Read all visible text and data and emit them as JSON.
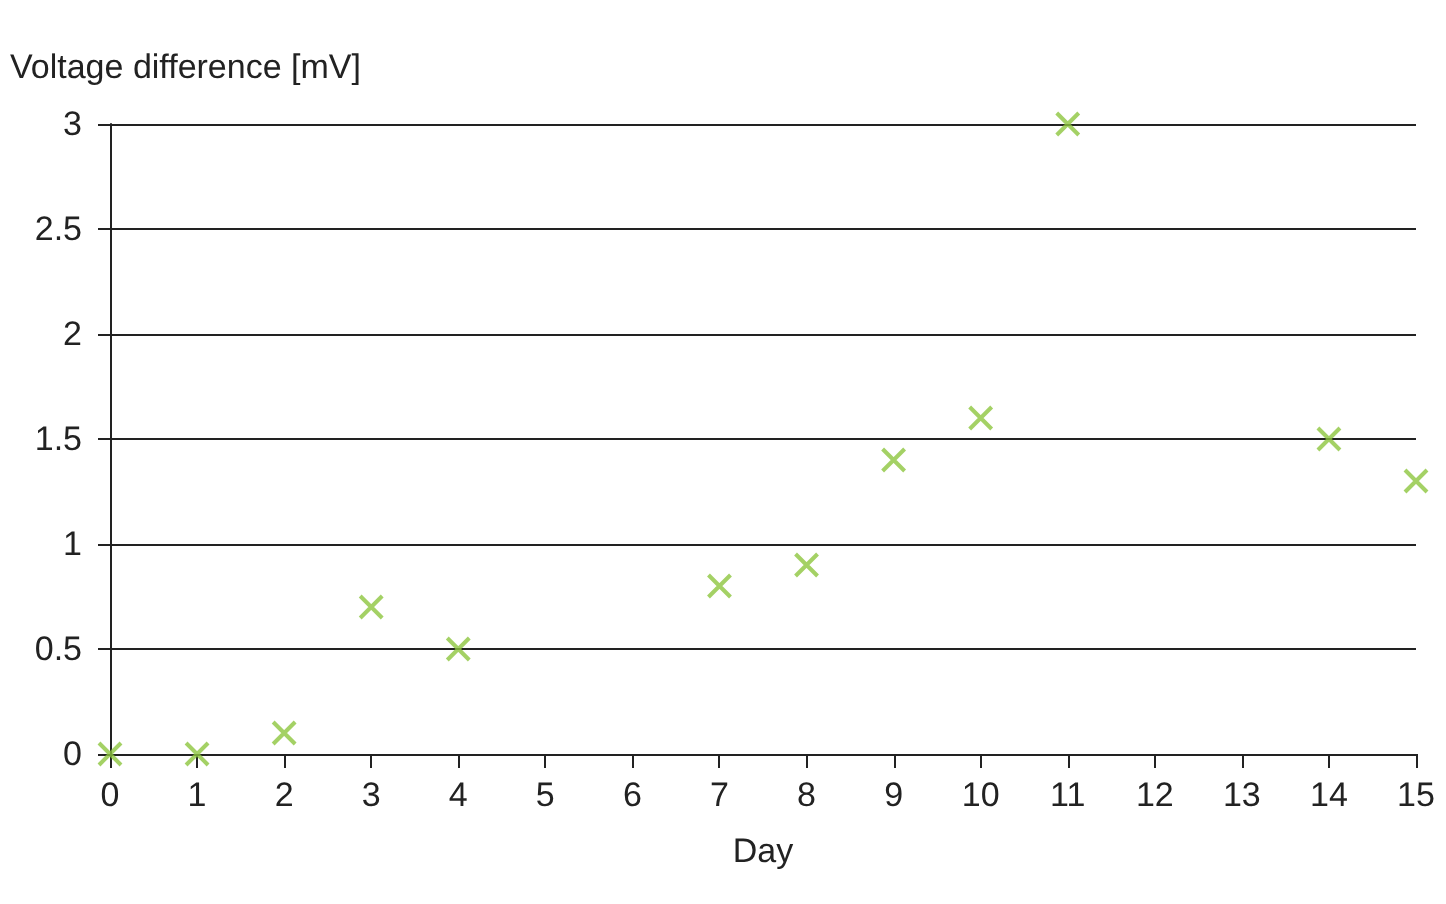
{
  "chart_data": {
    "type": "scatter",
    "xlabel": "Day",
    "ylabel": "Voltage difference [mV]",
    "x": [
      0,
      1,
      2,
      3,
      4,
      7,
      8,
      9,
      10,
      11,
      14,
      15
    ],
    "values": [
      0,
      0,
      0.1,
      0.7,
      0.5,
      0.8,
      0.9,
      1.4,
      1.6,
      3,
      1.5,
      1.3
    ],
    "color": "#8dc63f",
    "marker": "cross",
    "xlim": [
      0,
      15
    ],
    "xticks": [
      0,
      1,
      2,
      3,
      4,
      5,
      6,
      7,
      8,
      9,
      10,
      11,
      12,
      13,
      14,
      15
    ],
    "ylim": [
      0,
      3
    ],
    "yticks": [
      0,
      0.5,
      1,
      1.5,
      2,
      2.5,
      3
    ],
    "grid": "y"
  }
}
